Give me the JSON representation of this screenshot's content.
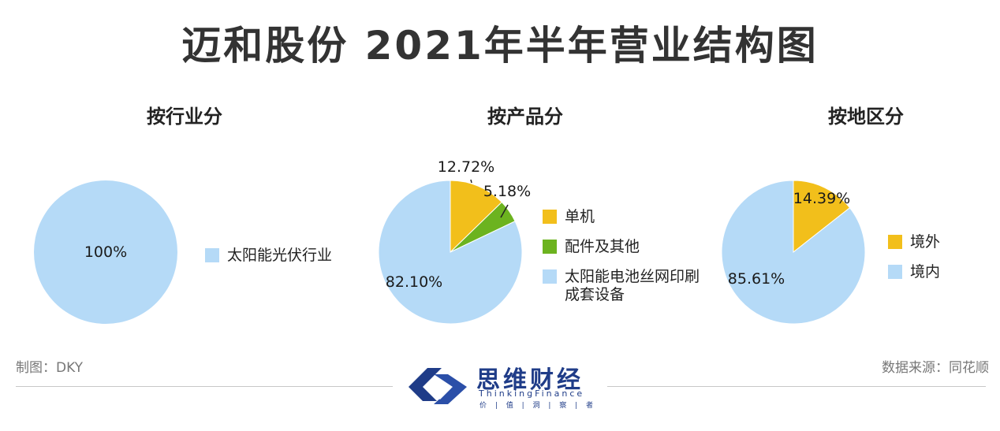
{
  "title": "迈和股份 2021年半年营业结构图",
  "colors": {
    "blue": "#b5daf7",
    "yellow": "#f2bf1b",
    "green": "#6cb31f",
    "brand": "#1f3c88"
  },
  "chart_data": [
    {
      "type": "pie",
      "title": "按行业分",
      "slices": [
        {
          "label": "太阳能光伏行业",
          "value": 100,
          "display": "100%",
          "color": "#b5daf7"
        }
      ]
    },
    {
      "type": "pie",
      "title": "按产品分",
      "slices": [
        {
          "label": "单机",
          "value": 12.72,
          "display": "12.72%",
          "color": "#f2bf1b"
        },
        {
          "label": "配件及其他",
          "value": 5.18,
          "display": "5.18%",
          "color": "#6cb31f"
        },
        {
          "label": "太阳能电池丝网印刷\n成套设备",
          "value": 82.1,
          "display": "82.10%",
          "color": "#b5daf7"
        }
      ]
    },
    {
      "type": "pie",
      "title": "按地区分",
      "slices": [
        {
          "label": "境外",
          "value": 14.39,
          "display": "14.39%",
          "color": "#f2bf1b"
        },
        {
          "label": "境内",
          "value": 85.61,
          "display": "85.61%",
          "color": "#b5daf7"
        }
      ]
    }
  ],
  "footer": {
    "left": "制图：DKY",
    "right": "数据来源：同花顺"
  },
  "brand": {
    "name": "思维财经",
    "english": "ThinkingFinance",
    "tagline": "价 | 值 | 洞 | 察 | 者"
  }
}
